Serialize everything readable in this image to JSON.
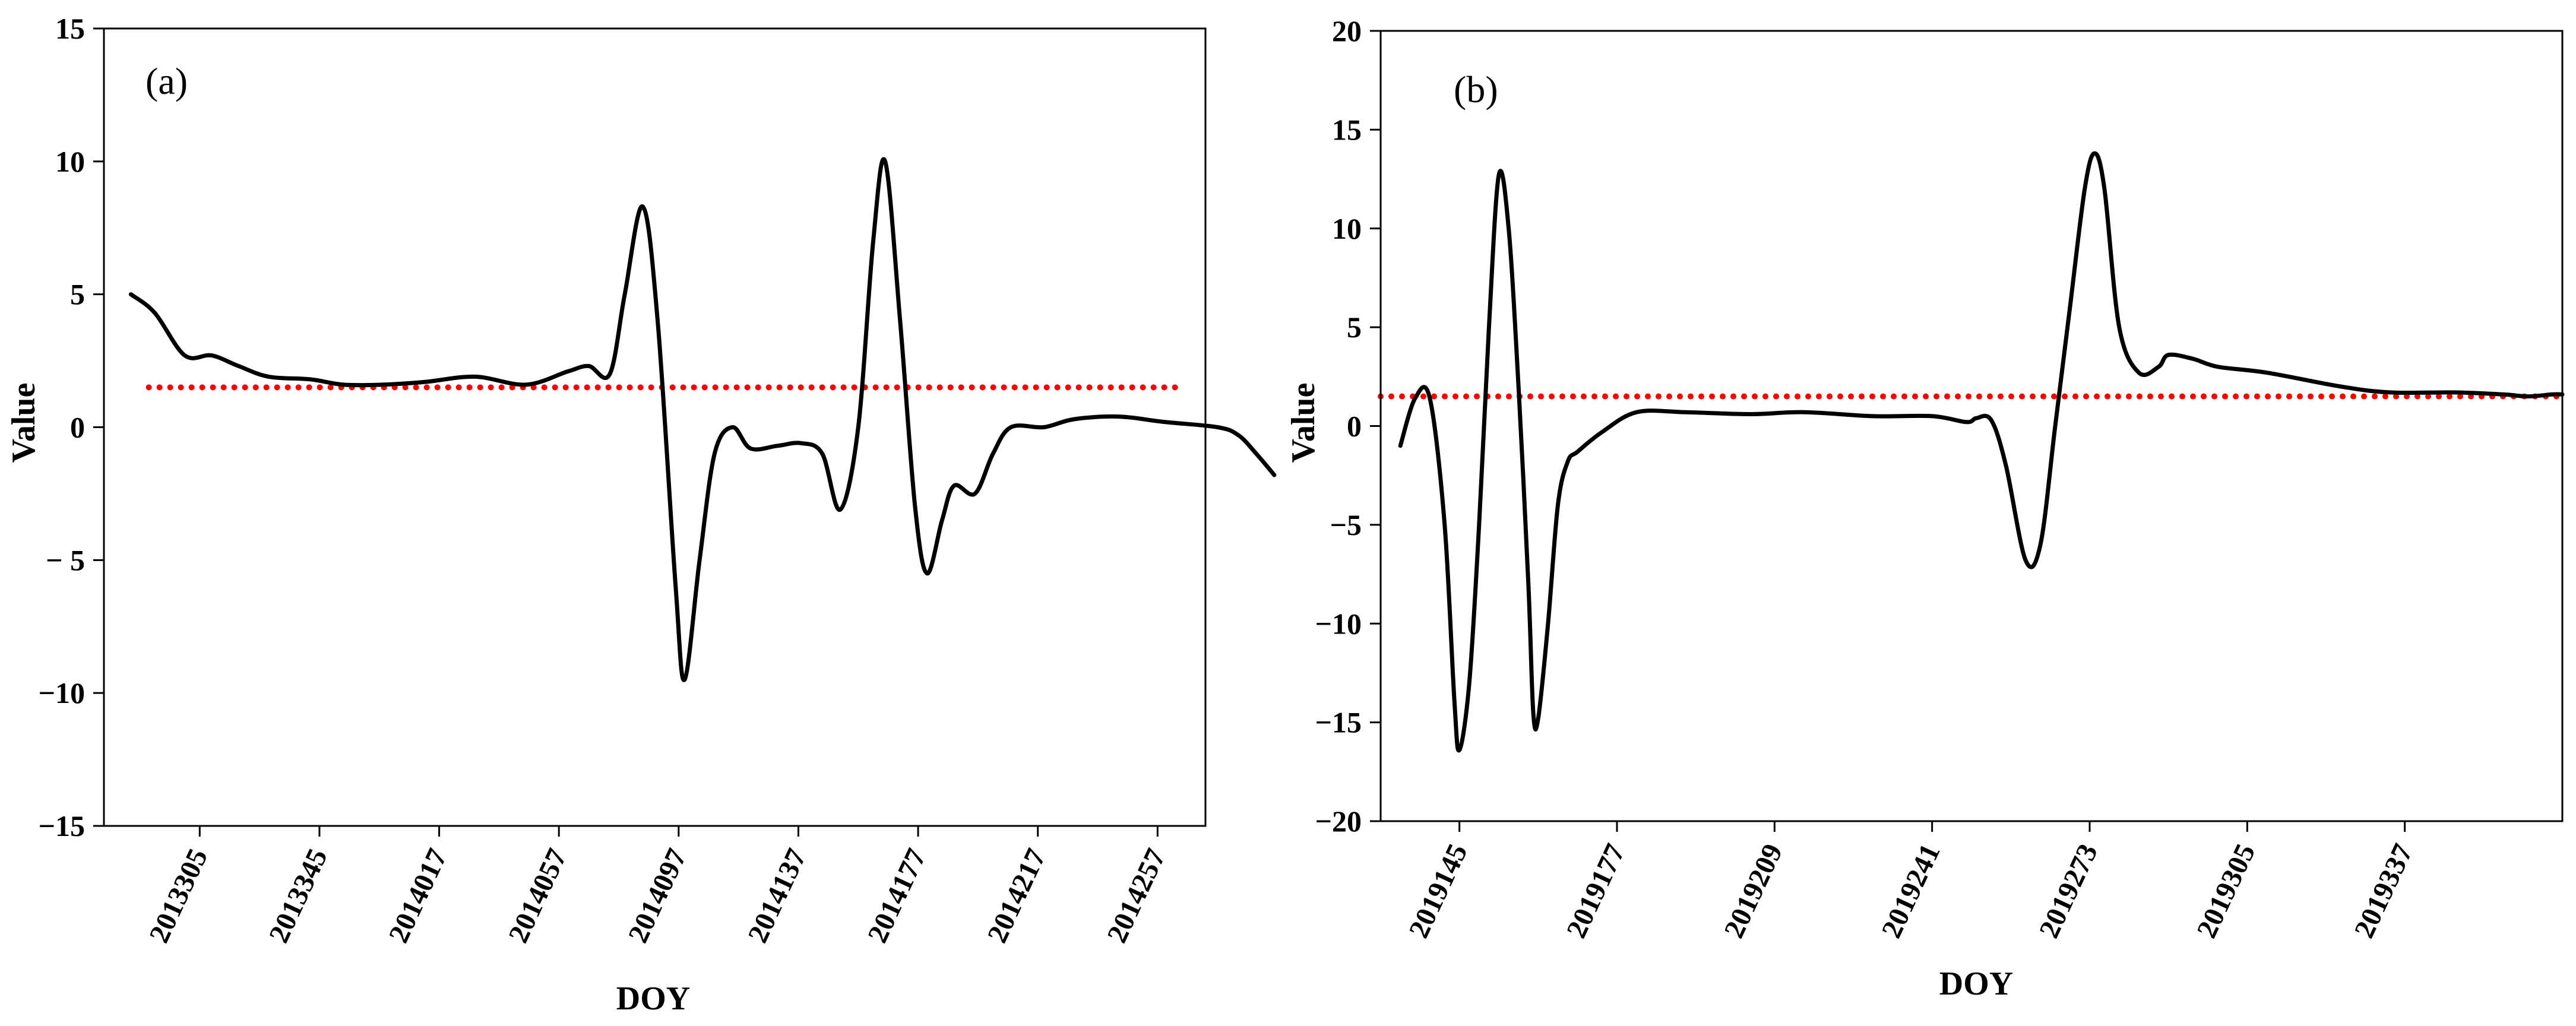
{
  "chart_data": [
    {
      "type": "line",
      "panel_label": "(a)",
      "xlabel": "DOY",
      "ylabel": "Value",
      "ylim": [
        -15,
        15
      ],
      "yticks": [
        15,
        10,
        5,
        0,
        -5,
        -10,
        -15
      ],
      "ytick_labels": [
        "15",
        "10",
        "5",
        "0",
        "− 5",
        "−10",
        "−15"
      ],
      "xlim": [
        2013265,
        2014305
      ],
      "xticks": [
        2013305,
        2013345,
        2014017,
        2014057,
        2014097,
        2014137,
        2014177,
        2014217,
        2014257
      ],
      "xtick_labels": [
        "2013305",
        "2013345",
        "2014017",
        "2014057",
        "2014097",
        "2014137",
        "2014177",
        "2014217",
        "2014257"
      ],
      "x_index_positions": [
        32,
        72,
        112,
        152,
        192,
        232,
        272,
        312,
        352
      ],
      "x_index_range": [
        0,
        368
      ],
      "threshold": {
        "value": 1.5,
        "x_start_index": 15,
        "x_end_index": 358,
        "color": "#ff0000",
        "style": "dotted"
      },
      "series": [
        {
          "name": "value",
          "color": "#000000",
          "points": [
            [
              9,
              5.0
            ],
            [
              17,
              4.3
            ],
            [
              27,
              2.7
            ],
            [
              36,
              2.7
            ],
            [
              45,
              2.3
            ],
            [
              55,
              1.9
            ],
            [
              69,
              1.8
            ],
            [
              80,
              1.6
            ],
            [
              93,
              1.6
            ],
            [
              107,
              1.7
            ],
            [
              124,
              1.9
            ],
            [
              141,
              1.6
            ],
            [
              155,
              2.1
            ],
            [
              162,
              2.3
            ],
            [
              169,
              2.0
            ],
            [
              174,
              5.0
            ],
            [
              180,
              8.3
            ],
            [
              185,
              4.0
            ],
            [
              191,
              -6.0
            ],
            [
              194,
              -9.5
            ],
            [
              199,
              -5.0
            ],
            [
              204,
              -1.0
            ],
            [
              210,
              0.0
            ],
            [
              216,
              -0.8
            ],
            [
              225,
              -0.7
            ],
            [
              233,
              -0.6
            ],
            [
              240,
              -1.0
            ],
            [
              246,
              -3.1
            ],
            [
              252,
              0.0
            ],
            [
              257,
              7.0
            ],
            [
              261,
              10.0
            ],
            [
              266,
              4.0
            ],
            [
              271,
              -3.0
            ],
            [
              275,
              -5.5
            ],
            [
              280,
              -3.5
            ],
            [
              284,
              -2.2
            ],
            [
              291,
              -2.5
            ],
            [
              297,
              -1.0
            ],
            [
              303,
              0.0
            ],
            [
              314,
              0.0
            ],
            [
              324,
              0.3
            ],
            [
              339,
              0.4
            ],
            [
              354,
              0.2
            ],
            [
              372,
              0.0
            ],
            [
              379,
              -0.3
            ],
            [
              385,
              -1.0
            ],
            [
              391,
              -1.8
            ]
          ]
        }
      ]
    },
    {
      "type": "line",
      "panel_label": "(b)",
      "xlabel": "DOY",
      "ylabel": "Value",
      "ylim": [
        -20,
        20
      ],
      "yticks": [
        20,
        15,
        10,
        5,
        0,
        -5,
        -10,
        -15,
        -20
      ],
      "ytick_labels": [
        "20",
        "15",
        "10",
        "5",
        "0",
        "−5",
        "−10",
        "−15",
        "−20"
      ],
      "xlim": [
        2019129,
        2019369
      ],
      "xticks": [
        2019145,
        2019177,
        2019209,
        2019241,
        2019273,
        2019305,
        2019337
      ],
      "xtick_labels": [
        "2019145",
        "2019177",
        "2019209",
        "2019241",
        "2019273",
        "2019305",
        "2019337"
      ],
      "x_index_positions": [
        16,
        48,
        80,
        112,
        144,
        176,
        208
      ],
      "x_index_range": [
        0,
        240
      ],
      "threshold": {
        "value": 1.5,
        "x_start_index": 0,
        "x_end_index": 240,
        "color": "#ff0000",
        "style": "dotted"
      },
      "series": [
        {
          "name": "value",
          "color": "#000000",
          "points": [
            [
              4,
              -1.0
            ],
            [
              7,
              1.4
            ],
            [
              10,
              1.4
            ],
            [
              13,
              -5.0
            ],
            [
              15,
              -14.0
            ],
            [
              16,
              -16.4
            ],
            [
              18,
              -13.0
            ],
            [
              20,
              -5.0
            ],
            [
              22,
              5.0
            ],
            [
              24,
              12.7
            ],
            [
              26,
              10.0
            ],
            [
              28,
              2.0
            ],
            [
              30,
              -8.0
            ],
            [
              31,
              -14.5
            ],
            [
              32,
              -14.8
            ],
            [
              34,
              -10.0
            ],
            [
              36,
              -4.0
            ],
            [
              38,
              -1.8
            ],
            [
              40,
              -1.3
            ],
            [
              45,
              -0.3
            ],
            [
              52,
              0.7
            ],
            [
              62,
              0.7
            ],
            [
              75,
              0.6
            ],
            [
              86,
              0.7
            ],
            [
              100,
              0.5
            ],
            [
              112,
              0.5
            ],
            [
              119,
              0.2
            ],
            [
              121,
              0.4
            ],
            [
              124,
              0.3
            ],
            [
              127,
              -2.0
            ],
            [
              131,
              -6.8
            ],
            [
              134,
              -6.0
            ],
            [
              137,
              0.0
            ],
            [
              140,
              6.0
            ],
            [
              143,
              12.0
            ],
            [
              145,
              13.8
            ],
            [
              147,
              12.0
            ],
            [
              150,
              5.0
            ],
            [
              154,
              2.7
            ],
            [
              158,
              3.0
            ],
            [
              160,
              3.6
            ],
            [
              165,
              3.4
            ],
            [
              170,
              3.0
            ],
            [
              180,
              2.7
            ],
            [
              195,
              2.0
            ],
            [
              205,
              1.7
            ],
            [
              218,
              1.7
            ],
            [
              228,
              1.6
            ],
            [
              233,
              1.5
            ],
            [
              238,
              1.6
            ],
            [
              240,
              1.6
            ]
          ]
        }
      ]
    }
  ]
}
